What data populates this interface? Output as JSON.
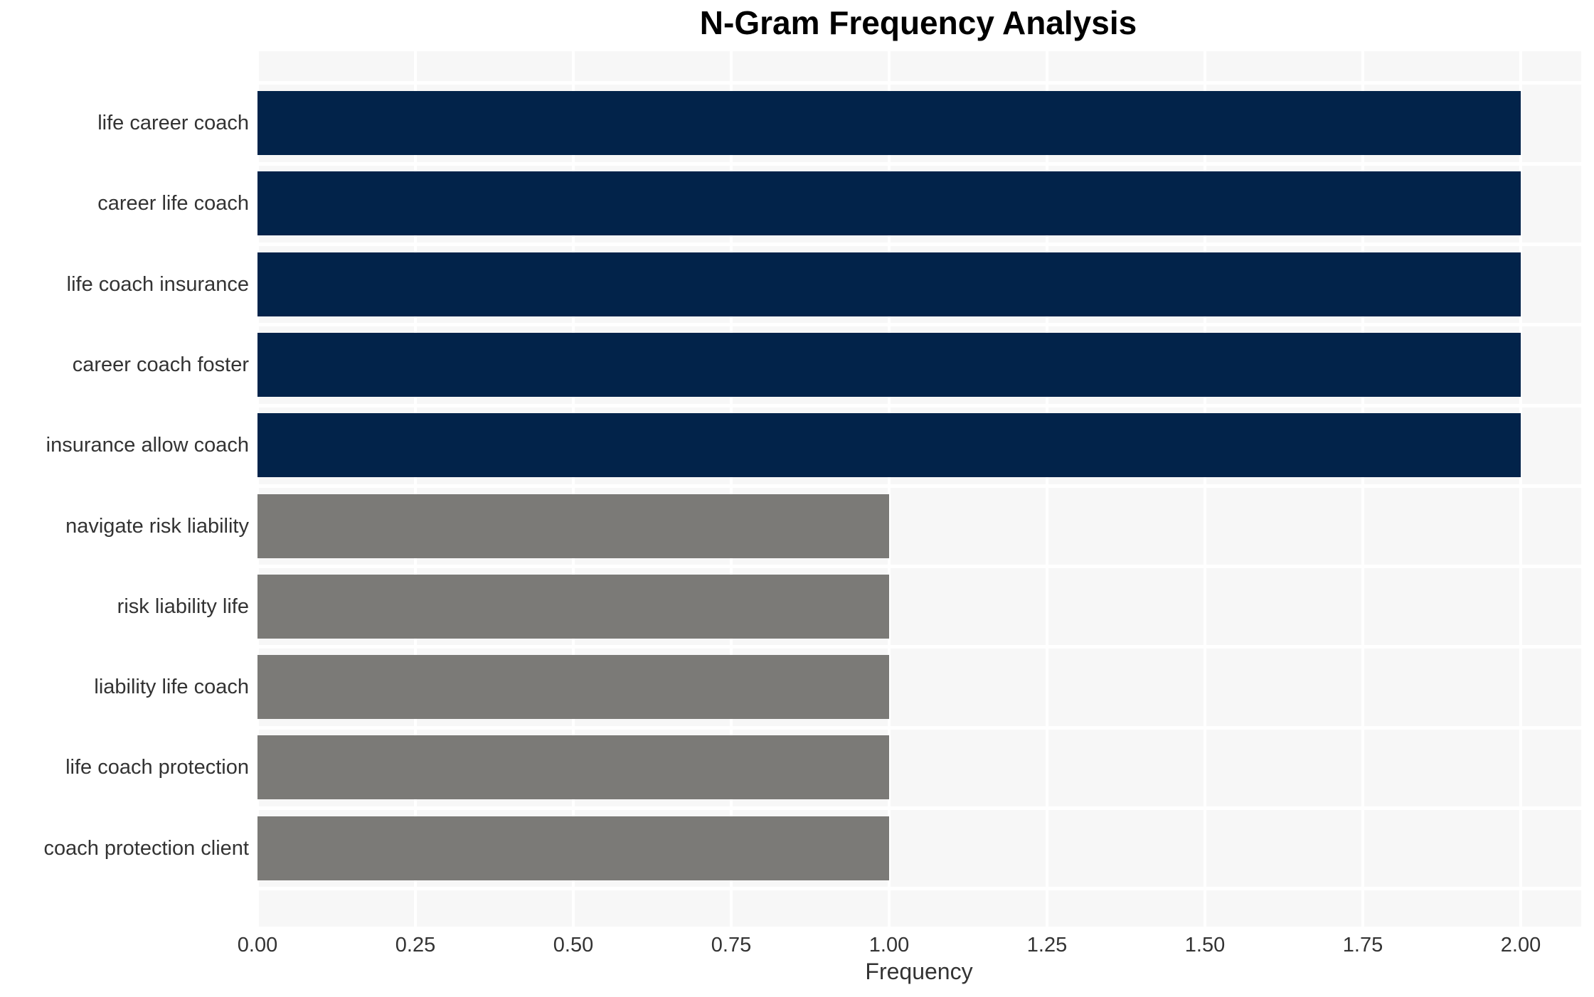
{
  "chart_data": {
    "type": "bar",
    "orientation": "horizontal",
    "title": "N-Gram Frequency Analysis",
    "xlabel": "Frequency",
    "ylabel": "",
    "categories": [
      "life career coach",
      "career life coach",
      "life coach insurance",
      "career coach foster",
      "insurance allow coach",
      "navigate risk liability",
      "risk liability life",
      "liability life coach",
      "life coach protection",
      "coach protection client"
    ],
    "values": [
      2,
      2,
      2,
      2,
      2,
      1,
      1,
      1,
      1,
      1
    ],
    "bar_colors": [
      "#02234a",
      "#02234a",
      "#02234a",
      "#02234a",
      "#02234a",
      "#7b7a77",
      "#7b7a77",
      "#7b7a77",
      "#7b7a77",
      "#7b7a77"
    ],
    "xlim": [
      0,
      2.1
    ],
    "xtick_values": [
      0,
      0.25,
      0.5,
      0.75,
      1.0,
      1.25,
      1.5,
      1.75,
      2.0
    ],
    "xtick_labels": [
      "0.00",
      "0.25",
      "0.50",
      "0.75",
      "1.00",
      "1.25",
      "1.50",
      "1.75",
      "2.00"
    ],
    "legend": "none",
    "grid": {
      "vertical_major": true,
      "horizontal_category_boundaries": true,
      "gridline_color": "#ffffff"
    },
    "panel_background": "#f7f7f7",
    "figure_background": "#ffffff",
    "accent_navy": "#02234a",
    "accent_gray": "#7b7a77",
    "text_color": "#333333",
    "title_color": "#000000"
  }
}
